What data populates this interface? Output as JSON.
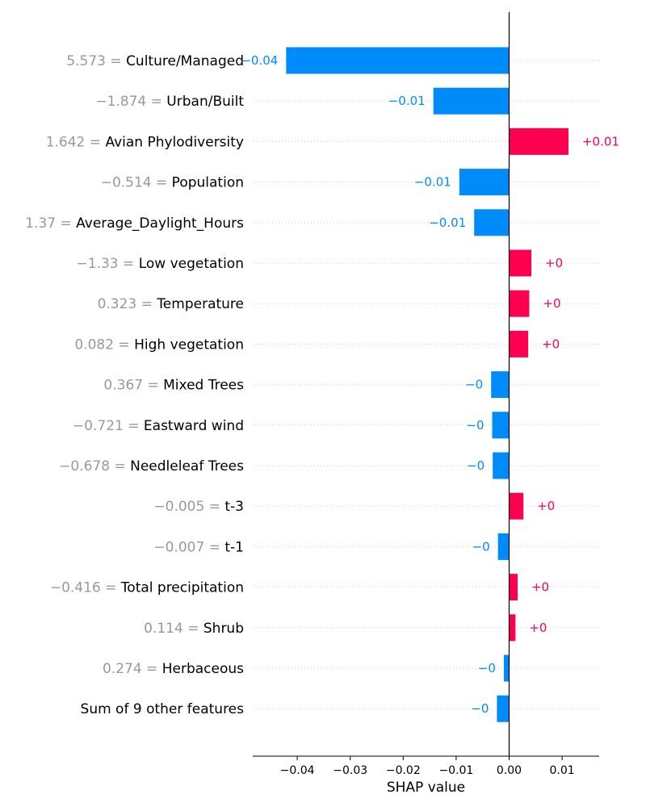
{
  "chart_data": {
    "type": "bar",
    "orientation": "horizontal",
    "xlabel": "SHAP value",
    "xlim": [
      -0.048,
      0.017
    ],
    "xticks": [
      -0.04,
      -0.03,
      -0.02,
      -0.01,
      0.0,
      0.01
    ],
    "xtick_labels": [
      "−0.04",
      "−0.03",
      "−0.02",
      "−0.01",
      "0.00",
      "0.01"
    ],
    "grid": "dotted horizontal",
    "colors": {
      "positive": "#ff0051",
      "negative": "#008bfb"
    },
    "features": [
      {
        "value": "5.573 = ",
        "name": "Culture/Managed",
        "shap": -0.0421,
        "label": "−0.04"
      },
      {
        "value": "−1.874 = ",
        "name": "Urban/Built",
        "shap": -0.0143,
        "label": "−0.01"
      },
      {
        "value": "1.642 = ",
        "name": "Avian Phylodiversity",
        "shap": 0.0112,
        "label": "+0.01"
      },
      {
        "value": "−0.514 = ",
        "name": "Population",
        "shap": -0.0094,
        "label": "−0.01"
      },
      {
        "value": "1.37 = ",
        "name": "Average_Daylight_Hours",
        "shap": -0.0066,
        "label": "−0.01"
      },
      {
        "value": "−1.33 = ",
        "name": "Low vegetation",
        "shap": 0.0042,
        "label": "+0"
      },
      {
        "value": "0.323 = ",
        "name": "Temperature",
        "shap": 0.0038,
        "label": "+0"
      },
      {
        "value": "0.082 = ",
        "name": "High vegetation",
        "shap": 0.0036,
        "label": "+0"
      },
      {
        "value": "0.367 = ",
        "name": "Mixed Trees",
        "shap": -0.0034,
        "label": "−0"
      },
      {
        "value": "−0.721 = ",
        "name": "Eastward wind",
        "shap": -0.0032,
        "label": "−0"
      },
      {
        "value": "−0.678 = ",
        "name": "Needleleaf Trees",
        "shap": -0.0031,
        "label": "−0"
      },
      {
        "value": "−0.005 = ",
        "name": "t-3",
        "shap": 0.0027,
        "label": "+0"
      },
      {
        "value": "−0.007 = ",
        "name": "t-1",
        "shap": -0.0021,
        "label": "−0"
      },
      {
        "value": "−0.416 = ",
        "name": "Total precipitation",
        "shap": 0.0016,
        "label": "+0"
      },
      {
        "value": "0.114 = ",
        "name": "Shrub",
        "shap": 0.0012,
        "label": "+0"
      },
      {
        "value": "0.274 = ",
        "name": "Herbaceous",
        "shap": -0.001,
        "label": "−0"
      },
      {
        "value": "",
        "name": "Sum of 9 other features",
        "shap": -0.0023,
        "label": "−0"
      }
    ]
  }
}
